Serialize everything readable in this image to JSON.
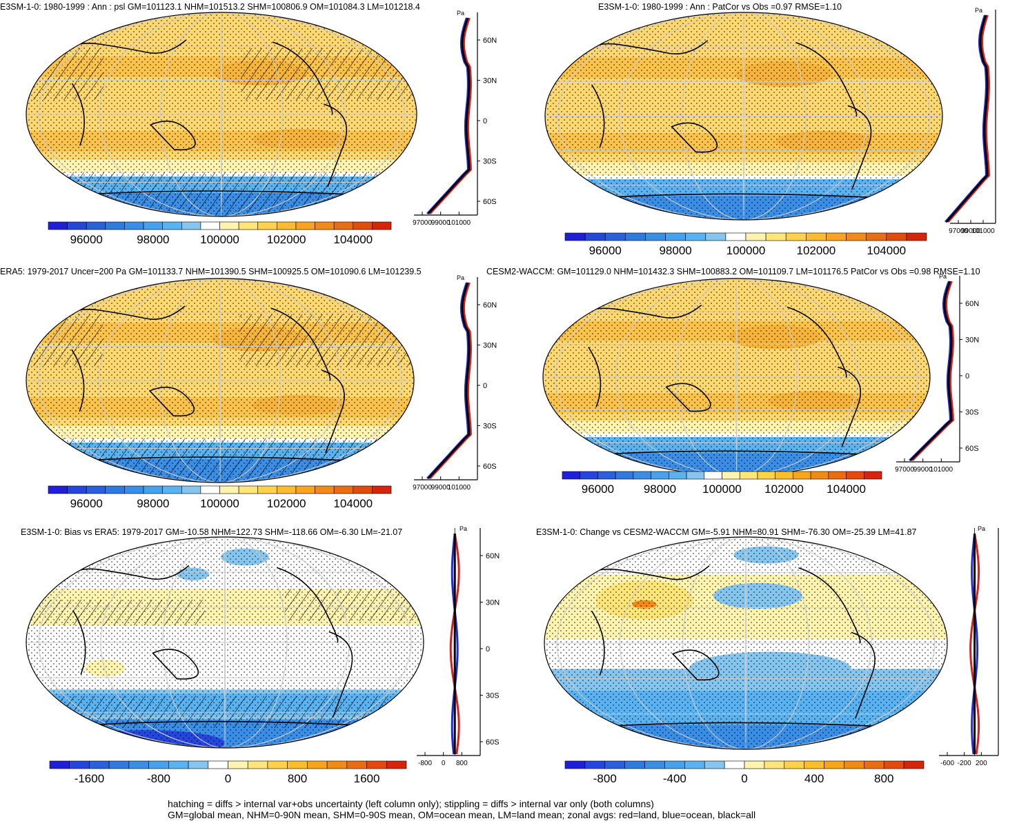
{
  "panels": [
    {
      "id": "p1",
      "title": "E3SM-1-0: 1980-1999 : Ann : psl GM=101123.1 NHM=101513.2 SHM=100806.9 OM=101084.3 LM=101218.4",
      "kind": "abs",
      "colorbar": {
        "labels": [
          "96000",
          "98000",
          "100000",
          "102000",
          "104000"
        ]
      },
      "profile": {
        "unit": "Pa",
        "xticks": [
          "97000",
          "99000",
          "101000"
        ],
        "lat_labels": [
          "60N",
          "30N",
          "0",
          "30S",
          "60S"
        ]
      }
    },
    {
      "id": "p2",
      "title": "E3SM-1-0: 1980-1999 : Ann : PatCor vs Obs =0.97 RMSE=1.10",
      "kind": "abs",
      "colorbar": {
        "labels": [
          "96000",
          "98000",
          "100000",
          "102000",
          "104000"
        ]
      },
      "profile": {
        "unit": "Pa",
        "xticks": [
          "97000",
          "99000",
          "101000"
        ],
        "lat_labels": []
      }
    },
    {
      "id": "p3",
      "title": "ERA5: 1979-2017 Uncer=200 Pa GM=101133.7 NHM=101390.5 SHM=100925.5 OM=101090.6 LM=101239.5",
      "kind": "abs",
      "colorbar": {
        "labels": [
          "96000",
          "98000",
          "100000",
          "102000",
          "104000"
        ]
      },
      "profile": {
        "unit": "Pa",
        "xticks": [
          "97000",
          "99000",
          "101000"
        ],
        "lat_labels": [
          "60N",
          "30N",
          "0",
          "30S",
          "60S"
        ]
      }
    },
    {
      "id": "p4",
      "title": "CESM2-WACCM: GM=101129.0 NHM=101432.3 SHM=100883.2 OM=101109.7 LM=101176.5 PatCor vs Obs =0.98 RMSE=1.10",
      "kind": "abs",
      "colorbar": {
        "labels": [
          "96000",
          "98000",
          "100000",
          "102000",
          "104000"
        ]
      },
      "profile": {
        "unit": "Pa",
        "xticks": [
          "97000",
          "99000",
          "101000"
        ],
        "lat_labels": [
          "60N",
          "30N",
          "0",
          "30S",
          "60S"
        ]
      }
    },
    {
      "id": "p5",
      "title": "E3SM-1-0: Bias vs ERA5: 1979-2017 GM=-10.58 NHM=122.73 SHM=-118.66 OM=-6.30 LM=-21.07",
      "kind": "diff",
      "colorbar": {
        "labels": [
          "-1600",
          "-800",
          "0",
          "800",
          "1600"
        ]
      },
      "profile": {
        "unit": "Pa",
        "xticks": [
          "-800",
          "0",
          "800"
        ],
        "lat_labels": [
          "60N",
          "30N",
          "0",
          "30S",
          "60S"
        ]
      }
    },
    {
      "id": "p6",
      "title": "E3SM-1-0: Change vs CESM2-WACCM GM=-5.91 NHM=80.91 SHM=-76.30 OM=-25.39 LM=41.87",
      "kind": "diff",
      "colorbar": {
        "labels": [
          "-800",
          "-400",
          "0",
          "400",
          "800"
        ]
      },
      "profile": {
        "unit": "Pa",
        "xticks": [
          "-600",
          "-200",
          "200"
        ],
        "lat_labels": []
      }
    }
  ],
  "footer": {
    "line1": "hatching = diffs > internal var+obs uncertainty (left column only); stippling = diffs > internal var only (both columns)",
    "line2": "GM=global mean, NHM=0-90N mean, SHM=0-90S mean, OM=ocean mean, LM=land mean; zonal avgs: red=land, blue=ocean, black=all"
  },
  "colors": {
    "abs_scale": [
      "#1f1fd9",
      "#2446dc",
      "#2a5fdd",
      "#2f79e0",
      "#3a8ee6",
      "#46a2ec",
      "#5ab3f0",
      "#86c6ee",
      "#ffffff",
      "#fff3b0",
      "#ffe57a",
      "#ffd24a",
      "#fcbd2a",
      "#f8a51c",
      "#f38a15",
      "#ec6c10",
      "#e44a0c",
      "#d8240a"
    ],
    "land_line": "#d81e1e",
    "ocean_line": "#1e2be0",
    "all_line": "#000000"
  }
}
